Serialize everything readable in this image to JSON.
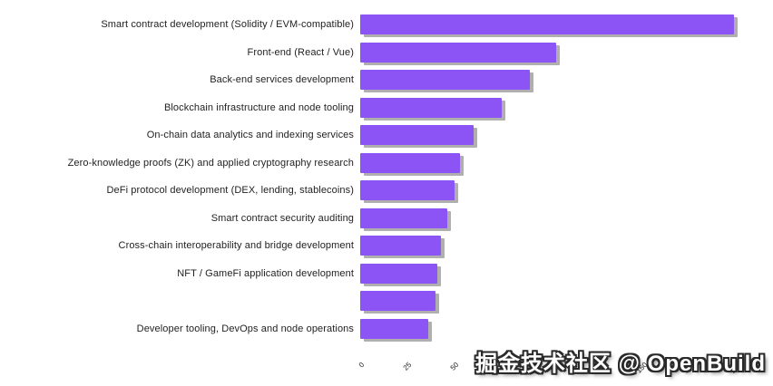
{
  "chart_data": {
    "type": "bar",
    "orientation": "horizontal",
    "title": "",
    "xlabel": "",
    "ylabel": "",
    "categories": [
      "Smart contract development (Solidity / EVM-compatible)",
      "Front-end (React / Vue)",
      "Back-end services development",
      "Blockchain infrastructure and node tooling",
      "On-chain data analytics and indexing services",
      "Zero-knowledge proofs (ZK) and applied cryptography research",
      "DeFi protocol development (DEX, lending, stablecoins)",
      "Smart contract security auditing",
      "Cross-chain interoperability and bridge development",
      "NFT / GameFi application development",
      "",
      "Developer tooling, DevOps and node operations"
    ],
    "values": [
      198,
      104,
      90,
      75,
      60,
      53,
      50,
      46,
      43,
      41,
      40,
      36
    ],
    "x_ticks": [
      "0",
      "25",
      "50",
      "75",
      "100",
      "125",
      "150",
      "175",
      "200"
    ],
    "xlim": [
      0,
      200
    ],
    "bar_color": "#8C54F4",
    "bar_shadow_color": "#6E6E6E",
    "grid": false,
    "legend": false
  },
  "watermark": {
    "text": "掘金技术社区 @ OpenBuild"
  }
}
